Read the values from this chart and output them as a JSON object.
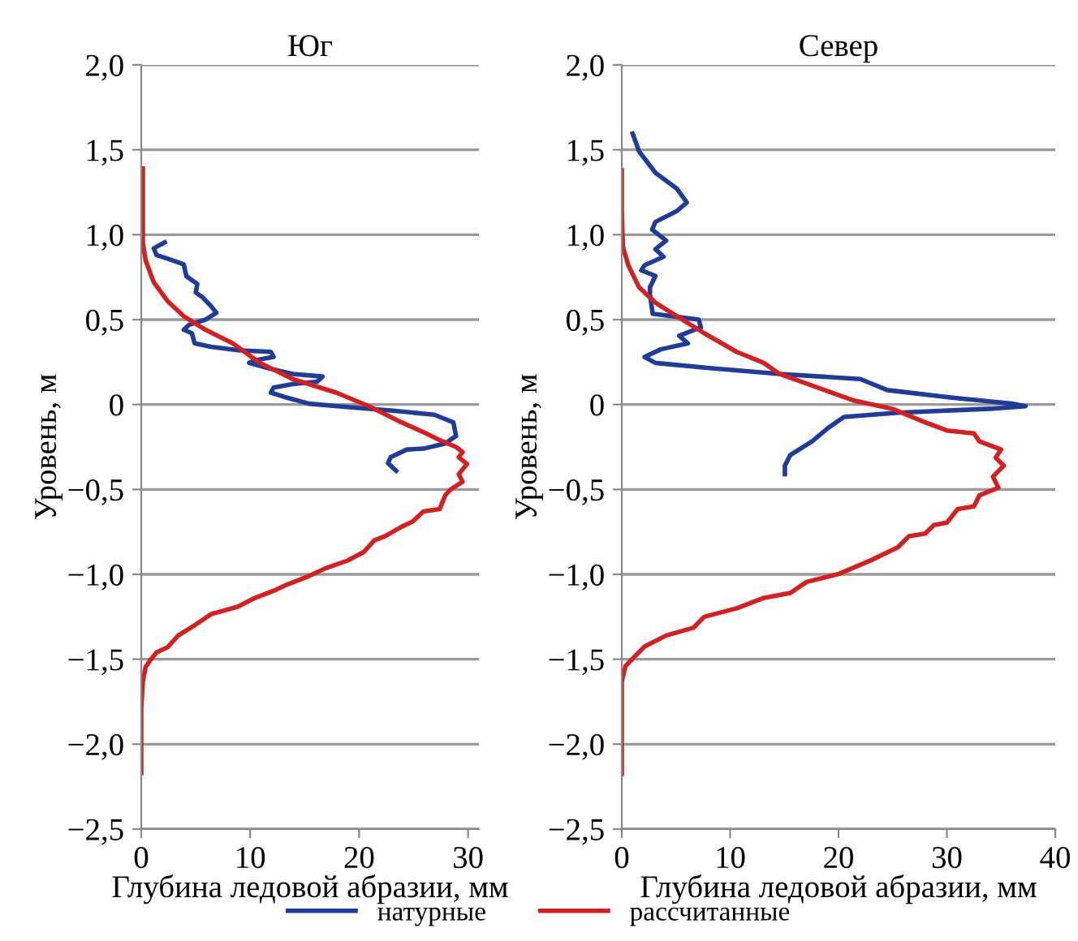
{
  "chart_data": [
    {
      "type": "line",
      "title": "Юг",
      "xlabel": "Глубина ледовой абразии, мм",
      "ylabel": "Уровень, м",
      "xlim": [
        0,
        31
      ],
      "xticks": [
        0,
        10,
        20,
        30
      ],
      "ylim": [
        -2.5,
        2.0
      ],
      "yticks": [
        {
          "value": -2.5,
          "label": "−2,5"
        },
        {
          "value": -2.0,
          "label": "−2,0"
        },
        {
          "value": -1.5,
          "label": "−1,5"
        },
        {
          "value": -1.0,
          "label": "−1,0"
        },
        {
          "value": -0.5,
          "label": "−0,5"
        },
        {
          "value": 0,
          "label": "0"
        },
        {
          "value": 0.5,
          "label": "0,5"
        },
        {
          "value": 1.0,
          "label": "1,0"
        },
        {
          "value": 1.5,
          "label": "1,5"
        },
        {
          "value": 2.0,
          "label": "2,0"
        }
      ],
      "grid": "y",
      "legend": "bottom",
      "marker": "none",
      "series": [
        {
          "name": "натурные",
          "color": "#1f3c99",
          "x": [
            2.15,
            1.15,
            1.4,
            2.8,
            3.9,
            4.15,
            5.15,
            5.0,
            5.65,
            6.4,
            6.9,
            5.9,
            4.4,
            3.9,
            4.65,
            4.9,
            6.4,
            8.9,
            11.9,
            12.15,
            10.4,
            9.9,
            11.9,
            13.9,
            16.65,
            16.15,
            13.9,
            12.15,
            11.9,
            13.4,
            15.4,
            18.9,
            22.9,
            26.9,
            28.65,
            28.9,
            27.9,
            25.9,
            24.4,
            22.9,
            22.65,
            23.4
          ],
          "values": [
            0.955,
            0.92,
            0.88,
            0.85,
            0.825,
            0.755,
            0.71,
            0.66,
            0.63,
            0.58,
            0.54,
            0.5,
            0.47,
            0.44,
            0.42,
            0.36,
            0.34,
            0.32,
            0.31,
            0.28,
            0.26,
            0.245,
            0.21,
            0.18,
            0.165,
            0.135,
            0.12,
            0.1,
            0.07,
            0.04,
            0.005,
            -0.015,
            -0.035,
            -0.06,
            -0.105,
            -0.185,
            -0.23,
            -0.26,
            -0.265,
            -0.31,
            -0.345,
            -0.39
          ]
        },
        {
          "name": "рассчитанные",
          "color": "#d42020",
          "x": [
            0.15,
            0.15,
            0.15,
            0.4,
            1.15,
            2.4,
            3.9,
            5.9,
            8.4,
            10.9,
            13.9,
            17.9,
            20.9,
            23.9,
            26.15,
            27.4,
            28.9,
            29.5,
            29.15,
            29.9,
            29.15,
            29.5,
            28.4,
            27.9,
            27.4,
            25.9,
            24.9,
            23.9,
            22.4,
            21.4,
            20.4,
            18.9,
            16.9,
            15.4,
            13.4,
            12.4,
            10.4,
            8.9,
            6.4,
            4.9,
            3.4,
            2.4,
            1.4,
            0.9,
            0.4,
            0.15,
            0,
            0
          ],
          "values": [
            1.39,
            1.14,
            0.95,
            0.85,
            0.72,
            0.61,
            0.52,
            0.44,
            0.36,
            0.245,
            0.15,
            0.07,
            -0.01,
            -0.105,
            -0.17,
            -0.21,
            -0.25,
            -0.28,
            -0.31,
            -0.35,
            -0.41,
            -0.455,
            -0.5,
            -0.535,
            -0.615,
            -0.63,
            -0.69,
            -0.72,
            -0.775,
            -0.8,
            -0.87,
            -0.92,
            -0.965,
            -1.01,
            -1.06,
            -1.09,
            -1.14,
            -1.19,
            -1.235,
            -1.3,
            -1.36,
            -1.43,
            -1.46,
            -1.5,
            -1.545,
            -1.63,
            -1.79,
            -2.17
          ]
        }
      ]
    },
    {
      "type": "line",
      "title": "Север",
      "xlabel": "Глубина ледовой абразии, мм",
      "ylabel": "Уровень, м",
      "xlim": [
        0,
        40
      ],
      "xticks": [
        0,
        10,
        20,
        30,
        40
      ],
      "ylim": [
        -2.5,
        2.0
      ],
      "yticks": [
        {
          "value": -2.5,
          "label": "−2,5"
        },
        {
          "value": -2.0,
          "label": "−2,0"
        },
        {
          "value": -1.5,
          "label": "−1,5"
        },
        {
          "value": -1.0,
          "label": "−1,0"
        },
        {
          "value": -0.5,
          "label": "−0,5"
        },
        {
          "value": 0,
          "label": "0"
        },
        {
          "value": 0.5,
          "label": "0,5"
        },
        {
          "value": 1.0,
          "label": "1,0"
        },
        {
          "value": 1.5,
          "label": "1,5"
        },
        {
          "value": 2.0,
          "label": "2,0"
        }
      ],
      "grid": "y",
      "marker": "none",
      "series": [
        {
          "color": "#1f3c99",
          "x": [
            1.0,
            1.6,
            3.1,
            5.1,
            6.0,
            5.1,
            3.1,
            2.8,
            4.1,
            3.1,
            3.85,
            2.1,
            1.8,
            3.1,
            2.6,
            2.6,
            2.85,
            7.1,
            7.3,
            5.3,
            6.1,
            3.6,
            2.1,
            3.1,
            8.1,
            14.6,
            22.0,
            24.5,
            30.5,
            36.0,
            37.25,
            34.0,
            25.5,
            20.5,
            19.05,
            17.55,
            15.55,
            15.05,
            15.05
          ],
          "values": [
            1.595,
            1.49,
            1.365,
            1.27,
            1.19,
            1.14,
            1.075,
            1.03,
            0.965,
            0.915,
            0.87,
            0.82,
            0.79,
            0.757,
            0.69,
            0.645,
            0.535,
            0.5,
            0.455,
            0.405,
            0.36,
            0.325,
            0.28,
            0.245,
            0.215,
            0.18,
            0.15,
            0.085,
            0.04,
            0.006,
            -0.01,
            -0.025,
            -0.048,
            -0.073,
            -0.137,
            -0.217,
            -0.297,
            -0.36,
            -0.41
          ]
        },
        {
          "color": "#d42020",
          "x": [
            0,
            0,
            0.1,
            0.6,
            1.6,
            3.1,
            5.1,
            7.6,
            10.6,
            13.1,
            14.55,
            18.05,
            21.5,
            25.0,
            28.0,
            30.0,
            32.5,
            33.0,
            35.0,
            34.5,
            35.25,
            34.25,
            34.75,
            33.0,
            32.5,
            31.0,
            30.0,
            28.8,
            28.0,
            26.5,
            25.5,
            23.0,
            20.05,
            17.05,
            15.55,
            13.05,
            10.6,
            7.6,
            6.6,
            4.1,
            2.1,
            1.1,
            0.35,
            0,
            0,
            0
          ],
          "values": [
            1.38,
            1.14,
            0.93,
            0.82,
            0.69,
            0.6,
            0.52,
            0.42,
            0.31,
            0.245,
            0.18,
            0.1,
            0.022,
            -0.026,
            -0.105,
            -0.153,
            -0.17,
            -0.217,
            -0.265,
            -0.313,
            -0.36,
            -0.425,
            -0.49,
            -0.535,
            -0.6,
            -0.615,
            -0.695,
            -0.71,
            -0.76,
            -0.775,
            -0.84,
            -0.917,
            -0.997,
            -1.045,
            -1.11,
            -1.14,
            -1.2,
            -1.25,
            -1.315,
            -1.36,
            -1.425,
            -1.49,
            -1.54,
            -1.63,
            -1.76,
            -2.175
          ]
        }
      ]
    }
  ]
}
